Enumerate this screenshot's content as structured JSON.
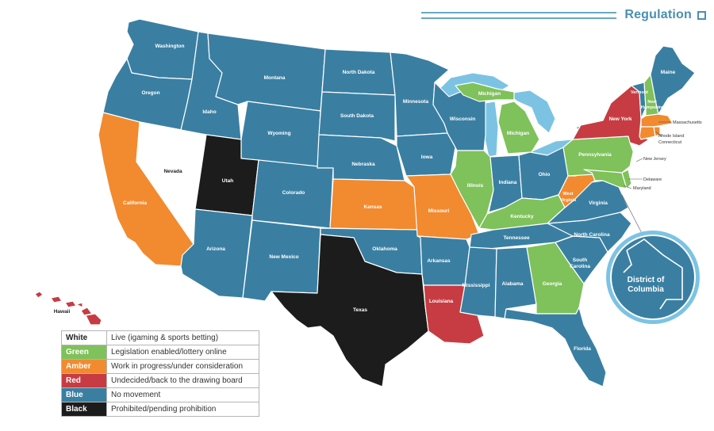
{
  "header": {
    "title": "Regulation"
  },
  "colors": {
    "white": "#ffffff",
    "green": "#7fc15a",
    "amber": "#f28a2f",
    "red": "#c63c42",
    "blue": "#3a7fa2",
    "black": "#1c1c1c",
    "lakes": "#7cc3e3"
  },
  "legend": [
    {
      "key": "White",
      "desc": "Live (igaming & sports betting)",
      "color": "#ffffff",
      "text": "#222222"
    },
    {
      "key": "Green",
      "desc": "Legislation enabled/lottery online",
      "color": "#7fc15a",
      "text": "#ffffff"
    },
    {
      "key": "Amber",
      "desc": "Work in progress/under consideration",
      "color": "#f28a2f",
      "text": "#ffffff"
    },
    {
      "key": "Red",
      "desc": "Undecided/back to the drawing board",
      "color": "#c63c42",
      "text": "#ffffff"
    },
    {
      "key": "Blue",
      "desc": "No movement",
      "color": "#3a7fa2",
      "text": "#ffffff"
    },
    {
      "key": "Black",
      "desc": "Prohibited/pending prohibition",
      "color": "#1c1c1c",
      "text": "#ffffff"
    }
  ],
  "states": {
    "washington": "Washington",
    "oregon": "Oregon",
    "california": "California",
    "nevada": "Nevada",
    "idaho": "Idaho",
    "montana": "Montana",
    "wyoming": "Wyoming",
    "utah": "Utah",
    "arizona": "Arizona",
    "colorado": "Colorado",
    "new_mexico": "New Mexico",
    "north_dakota": "North Dakota",
    "south_dakota": "South Dakota",
    "nebraska": "Nebraska",
    "kansas": "Kansas",
    "oklahoma": "Oklahoma",
    "texas": "Texas",
    "minnesota": "Minnesota",
    "iowa": "Iowa",
    "missouri": "Missouri",
    "arkansas": "Arkansas",
    "louisiana": "Louisiana",
    "wisconsin": "Wisconsin",
    "michigan_upper": "Michigan",
    "michigan_lower": "Michigan",
    "illinois": "Illinois",
    "indiana": "Indiana",
    "ohio": "Ohio",
    "kentucky": "Kentucky",
    "tennessee": "Tennessee",
    "mississippi": "Mississippi",
    "alabama": "Alabama",
    "georgia": "Georgia",
    "florida": "Florida",
    "south_carolina": "South Carolina",
    "north_carolina": "North Carolina",
    "virginia": "Virginia",
    "west_virginia": "West Virginia",
    "pennsylvania": "Pennsylvania",
    "new_york": "New York",
    "vermont": "Vermont",
    "new_hampshire": "New Hampshire",
    "maine": "Maine",
    "massachusetts": "Massachusetts",
    "rhode_island": "Rhode Island",
    "connecticut": "Connecticut",
    "new_jersey": "New Jersey",
    "delaware": "Delaware",
    "maryland": "Maryland",
    "hawaii": "Hawaii"
  },
  "inset": {
    "title_line1": "District of",
    "title_line2": "Columbia"
  }
}
